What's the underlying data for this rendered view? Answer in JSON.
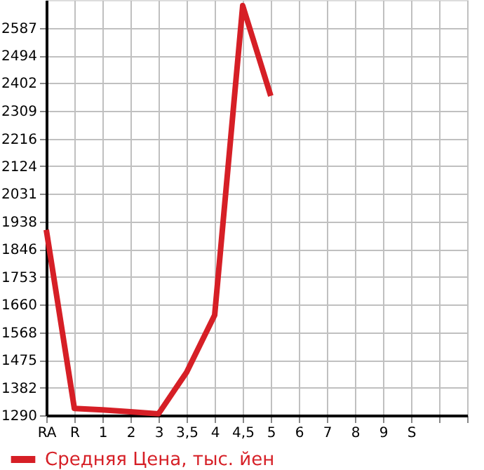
{
  "chart_data": {
    "type": "line",
    "categories": [
      "RA",
      "R",
      "1",
      "2",
      "3",
      "3,5",
      "4",
      "4,5",
      "5",
      "6",
      "7",
      "8",
      "9",
      "S",
      null,
      null
    ],
    "series": [
      {
        "name": "Средняя Цена, тыс. йен",
        "color": "#d61f26",
        "values": [
          1911,
          1313,
          1308,
          1302,
          1295,
          1434,
          1625,
          2661,
          2359,
          null,
          null,
          null,
          null,
          null,
          null,
          null
        ]
      }
    ],
    "ylim": [
      1290,
      2680
    ],
    "yticks": [
      1290,
      1382,
      1475,
      1568,
      1660,
      1753,
      1846,
      1938,
      2031,
      2124,
      2216,
      2309,
      2402,
      2494,
      2587
    ],
    "grid": true,
    "legend": "bottom left",
    "marker": "none",
    "line_style": "solid"
  }
}
